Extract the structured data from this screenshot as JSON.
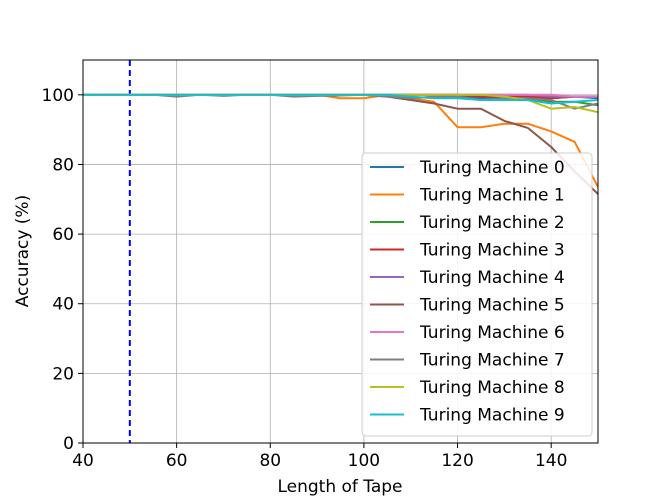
{
  "chart_data": {
    "type": "line",
    "title": "",
    "xlabel": "Length of Tape",
    "ylabel": "Accuracy (%)",
    "xlim": [
      40,
      150
    ],
    "ylim": [
      0,
      110
    ],
    "xticks": [
      40,
      60,
      80,
      100,
      120,
      140
    ],
    "yticks": [
      0,
      20,
      40,
      60,
      80,
      100
    ],
    "grid": true,
    "legend_position": "lower-right",
    "vline": {
      "x": 50,
      "color": "#0000ff",
      "style": "dashed"
    },
    "series": [
      {
        "name": "Turing Machine 0",
        "color": "#1f77b4",
        "x": [
          40,
          45,
          50,
          55,
          60,
          65,
          70,
          75,
          80,
          85,
          90,
          95,
          100,
          105,
          110,
          115,
          120,
          125,
          130,
          135,
          140,
          145,
          150
        ],
        "y": [
          100,
          100,
          100,
          100,
          100,
          100,
          100,
          100,
          100,
          100,
          100,
          100,
          100,
          100,
          100,
          100,
          99.5,
          99,
          99.5,
          99.5,
          99,
          99.5,
          99
        ]
      },
      {
        "name": "Turing Machine 1",
        "color": "#ff7f0e",
        "x": [
          40,
          45,
          50,
          55,
          60,
          65,
          70,
          75,
          80,
          85,
          90,
          95,
          100,
          105,
          110,
          115,
          120,
          125,
          130,
          135,
          140,
          145,
          150
        ],
        "y": [
          100,
          100,
          100,
          100,
          100,
          100,
          100,
          100,
          100,
          100,
          100,
          99,
          99,
          100,
          99,
          98,
          90.7,
          90.7,
          91.7,
          91.7,
          89.5,
          86.5,
          73.5
        ]
      },
      {
        "name": "Turing Machine 2",
        "color": "#2ca02c",
        "x": [
          40,
          45,
          50,
          55,
          60,
          65,
          70,
          75,
          80,
          85,
          90,
          95,
          100,
          105,
          110,
          115,
          120,
          125,
          130,
          135,
          140,
          145,
          150
        ],
        "y": [
          100,
          100,
          100,
          100,
          100,
          100,
          100,
          100,
          100,
          100,
          100,
          100,
          100,
          100,
          100,
          100,
          100,
          99.5,
          99.5,
          99,
          98,
          98,
          97
        ]
      },
      {
        "name": "Turing Machine 3",
        "color": "#d62728",
        "x": [
          40,
          45,
          50,
          55,
          60,
          65,
          70,
          75,
          80,
          85,
          90,
          95,
          100,
          105,
          110,
          115,
          120,
          125,
          130,
          135,
          140,
          145,
          150
        ],
        "y": [
          100,
          100,
          100,
          100,
          100,
          100,
          100,
          100,
          100,
          100,
          100,
          100,
          100,
          100,
          100,
          100,
          100,
          99.5,
          99.5,
          99.5,
          99,
          99.5,
          99.5
        ]
      },
      {
        "name": "Turing Machine 4",
        "color": "#9467bd",
        "x": [
          40,
          45,
          50,
          55,
          60,
          65,
          70,
          75,
          80,
          85,
          90,
          95,
          100,
          105,
          110,
          115,
          120,
          125,
          130,
          135,
          140,
          145,
          150
        ],
        "y": [
          100,
          100,
          100,
          100,
          100,
          100,
          100,
          100,
          100,
          100,
          100,
          100,
          100,
          100,
          100,
          100,
          100,
          100,
          100,
          100,
          99.5,
          99.5,
          99.5
        ]
      },
      {
        "name": "Turing Machine 5",
        "color": "#8c564b",
        "x": [
          40,
          45,
          50,
          55,
          60,
          65,
          70,
          75,
          80,
          85,
          90,
          95,
          100,
          105,
          110,
          115,
          120,
          125,
          130,
          135,
          140,
          145,
          150
        ],
        "y": [
          100,
          100,
          100,
          100,
          100,
          100,
          100,
          100,
          100,
          100,
          100,
          100,
          100,
          99.5,
          98.5,
          97.5,
          96,
          96,
          92.5,
          90.5,
          85,
          78,
          71.5
        ]
      },
      {
        "name": "Turing Machine 6",
        "color": "#e377c2",
        "x": [
          40,
          45,
          50,
          55,
          60,
          65,
          70,
          75,
          80,
          85,
          90,
          95,
          100,
          105,
          110,
          115,
          120,
          125,
          130,
          135,
          140,
          145,
          150
        ],
        "y": [
          100,
          100,
          100,
          100,
          100,
          100,
          100,
          100,
          100,
          100,
          100,
          100,
          100,
          100,
          100,
          100,
          100,
          100,
          100,
          100,
          100,
          99.5,
          99.5
        ]
      },
      {
        "name": "Turing Machine 7",
        "color": "#7f7f7f",
        "x": [
          40,
          45,
          50,
          55,
          60,
          65,
          70,
          75,
          80,
          85,
          90,
          95,
          100,
          105,
          110,
          115,
          120,
          125,
          130,
          135,
          140,
          145,
          150
        ],
        "y": [
          100,
          100,
          100,
          100,
          99.5,
          100,
          99.7,
          100,
          100,
          99.5,
          99.7,
          99.8,
          100,
          99.5,
          99,
          99.5,
          99.5,
          98.5,
          99,
          99,
          98.5,
          96,
          97.5
        ]
      },
      {
        "name": "Turing Machine 8",
        "color": "#bcbd22",
        "x": [
          40,
          45,
          50,
          55,
          60,
          65,
          70,
          75,
          80,
          85,
          90,
          95,
          100,
          105,
          110,
          115,
          120,
          125,
          130,
          135,
          140,
          145,
          150
        ],
        "y": [
          100,
          100,
          100,
          100,
          100,
          100,
          100,
          100,
          100,
          100,
          100,
          100,
          100,
          100,
          100,
          100,
          100,
          100,
          99.5,
          98.5,
          96,
          96.5,
          95
        ]
      },
      {
        "name": "Turing Machine 9",
        "color": "#17becf",
        "x": [
          40,
          45,
          50,
          55,
          60,
          65,
          70,
          75,
          80,
          85,
          90,
          95,
          100,
          105,
          110,
          115,
          120,
          125,
          130,
          135,
          140,
          145,
          150
        ],
        "y": [
          100,
          100,
          100,
          100,
          100,
          100,
          100,
          100,
          100,
          100,
          100,
          100,
          100,
          100,
          99.5,
          99,
          99,
          98.5,
          98.5,
          98.5,
          97.5,
          98,
          98.5
        ]
      }
    ]
  }
}
